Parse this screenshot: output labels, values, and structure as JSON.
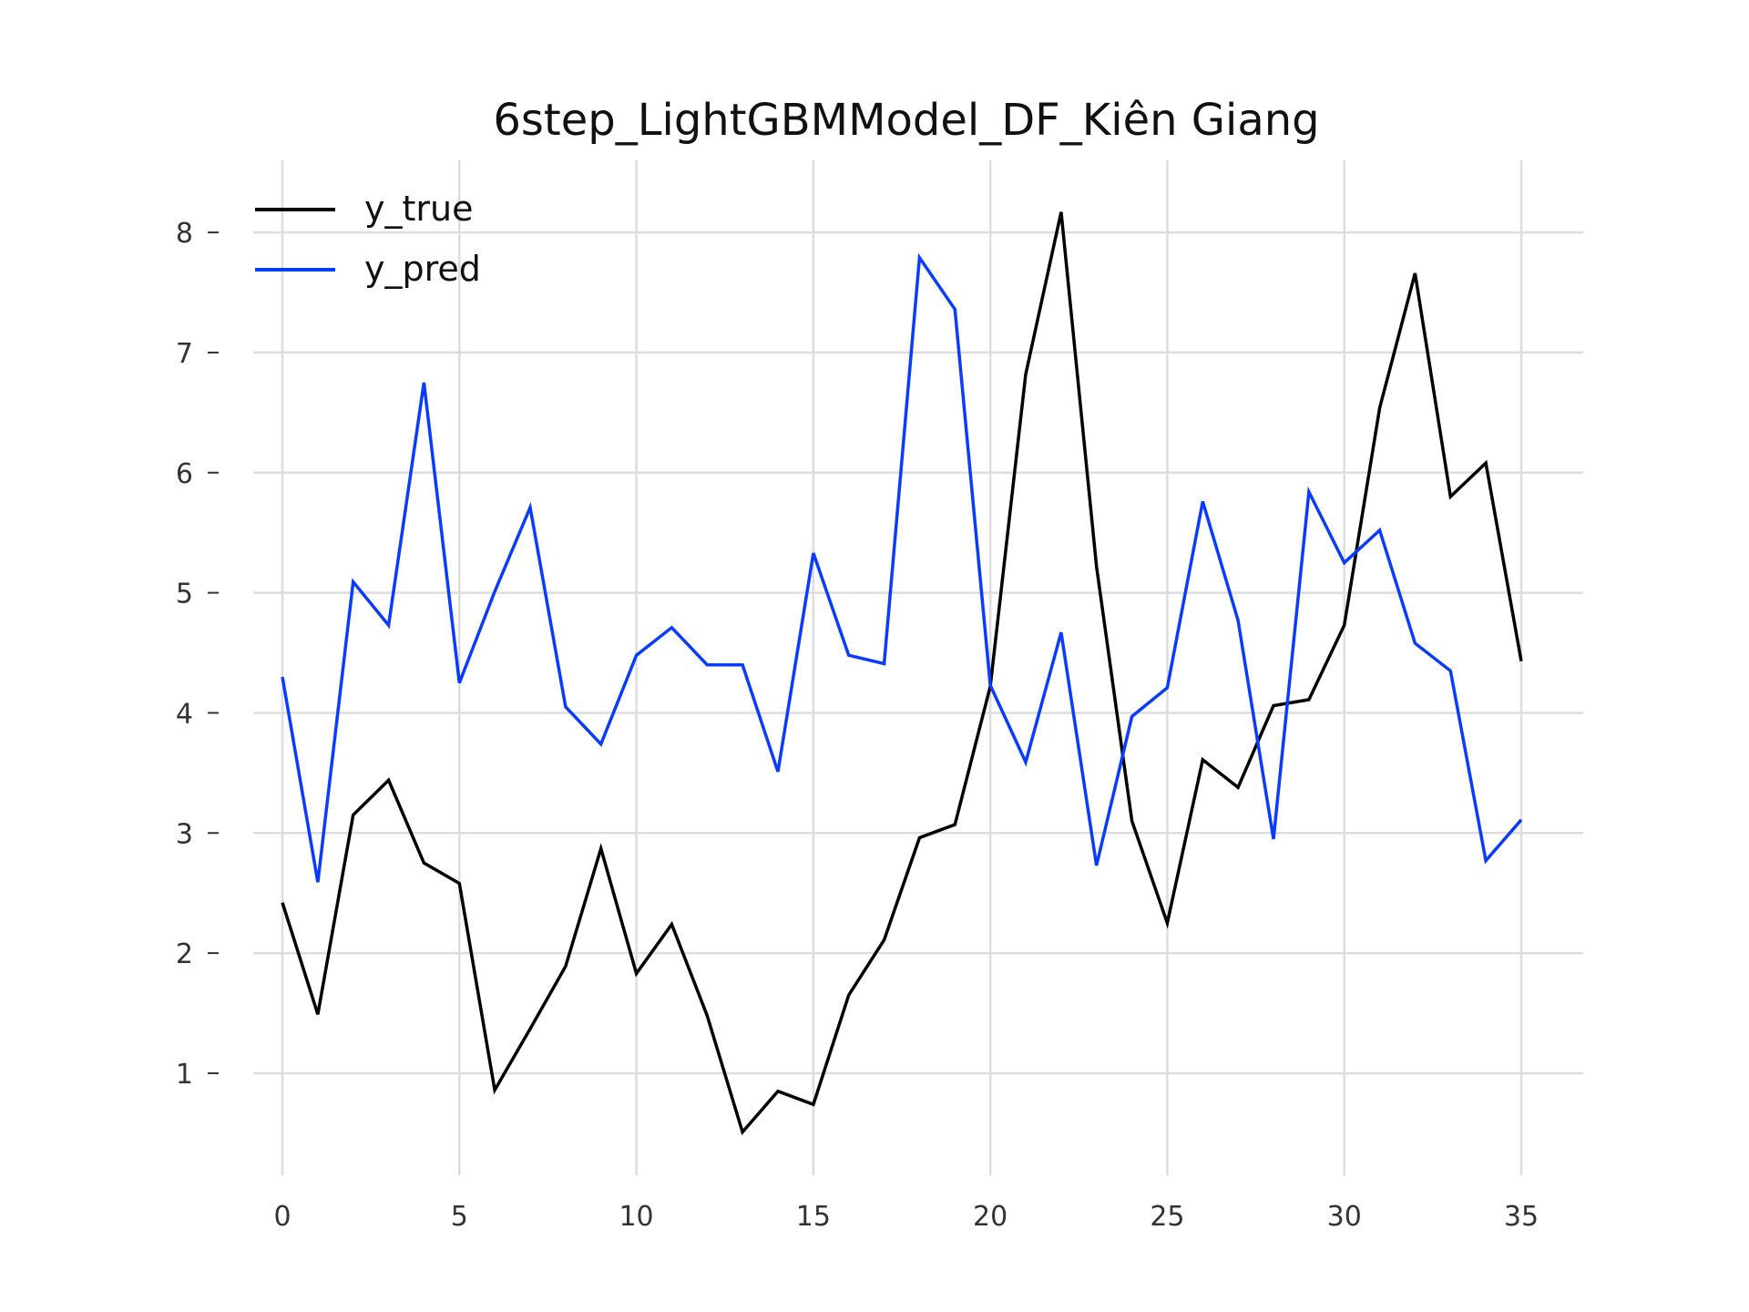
{
  "chart_data": {
    "type": "line",
    "title": "6step_LightGBMModel_DF_Kiên Giang",
    "xlabel": "",
    "ylabel": "",
    "xlim": [
      0,
      35
    ],
    "ylim": [
      0.15,
      8.6
    ],
    "xticks": [
      0,
      5,
      10,
      15,
      20,
      25,
      30,
      35
    ],
    "yticks": [
      1,
      2,
      3,
      4,
      5,
      6,
      7,
      8
    ],
    "grid": true,
    "legend_position": "top-left",
    "x": [
      0,
      1,
      2,
      3,
      4,
      5,
      6,
      7,
      8,
      9,
      10,
      11,
      12,
      13,
      14,
      15,
      16,
      17,
      18,
      19,
      20,
      21,
      22,
      23,
      24,
      25,
      26,
      27,
      28,
      29,
      30,
      31,
      32,
      33,
      34,
      35
    ],
    "series": [
      {
        "name": "y_true",
        "color": "#000000",
        "values": [
          2.42,
          1.49,
          3.15,
          3.44,
          2.75,
          2.58,
          0.86,
          1.37,
          1.89,
          2.87,
          1.83,
          2.24,
          1.48,
          0.51,
          0.85,
          0.74,
          1.65,
          2.11,
          2.96,
          3.07,
          4.22,
          6.82,
          8.17,
          5.22,
          3.1,
          2.25,
          3.61,
          3.38,
          4.06,
          4.11,
          4.73,
          6.54,
          7.66,
          5.8,
          6.08,
          4.43
        ]
      },
      {
        "name": "y_pred",
        "color": "#0a3cff",
        "values": [
          4.3,
          2.59,
          5.09,
          4.73,
          6.75,
          4.25,
          5.01,
          5.71,
          4.05,
          3.74,
          4.48,
          4.71,
          4.4,
          4.4,
          3.51,
          5.33,
          4.48,
          4.41,
          7.79,
          7.36,
          4.23,
          3.59,
          4.67,
          2.73,
          3.97,
          4.21,
          5.76,
          4.77,
          2.95,
          5.84,
          5.25,
          5.52,
          4.58,
          4.35,
          2.77,
          3.11
        ]
      }
    ]
  }
}
